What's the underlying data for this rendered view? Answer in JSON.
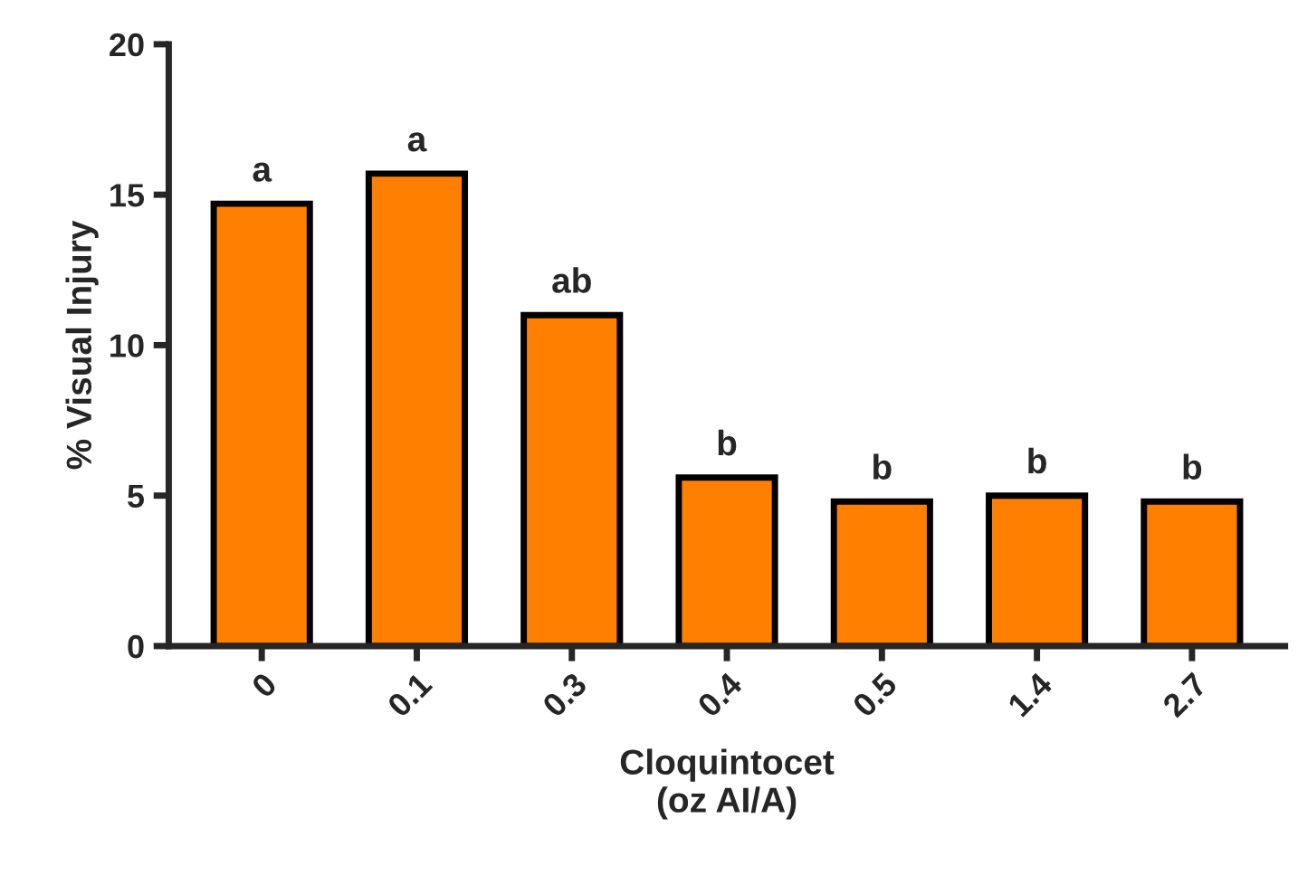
{
  "chart_data": {
    "type": "bar",
    "xlabel": "Cloquintocet\n(oz AI/A)",
    "ylabel": "% Visual Injury",
    "categories": [
      "0",
      "0.1",
      "0.3",
      "0.4",
      "0.5",
      "1.4",
      "2.7"
    ],
    "values": [
      14.7,
      15.7,
      11.0,
      5.6,
      4.8,
      5.0,
      4.8
    ],
    "color": "#ff8000",
    "ylim": [
      0,
      20
    ],
    "yticks": [
      0,
      5,
      10,
      15,
      20
    ],
    "grid": false,
    "annotations": [
      {
        "text": "a",
        "x": "0",
        "y": 14.7
      },
      {
        "text": "a",
        "x": "0.1",
        "y": 15.7
      },
      {
        "text": "ab",
        "x": "0.3",
        "y": 11.0
      },
      {
        "text": "b",
        "x": "0.4",
        "y": 5.6
      },
      {
        "text": "b",
        "x": "0.5",
        "y": 4.8
      },
      {
        "text": "b",
        "x": "1.4",
        "y": 5.0
      },
      {
        "text": "b",
        "x": "2.7",
        "y": 4.8
      }
    ]
  }
}
